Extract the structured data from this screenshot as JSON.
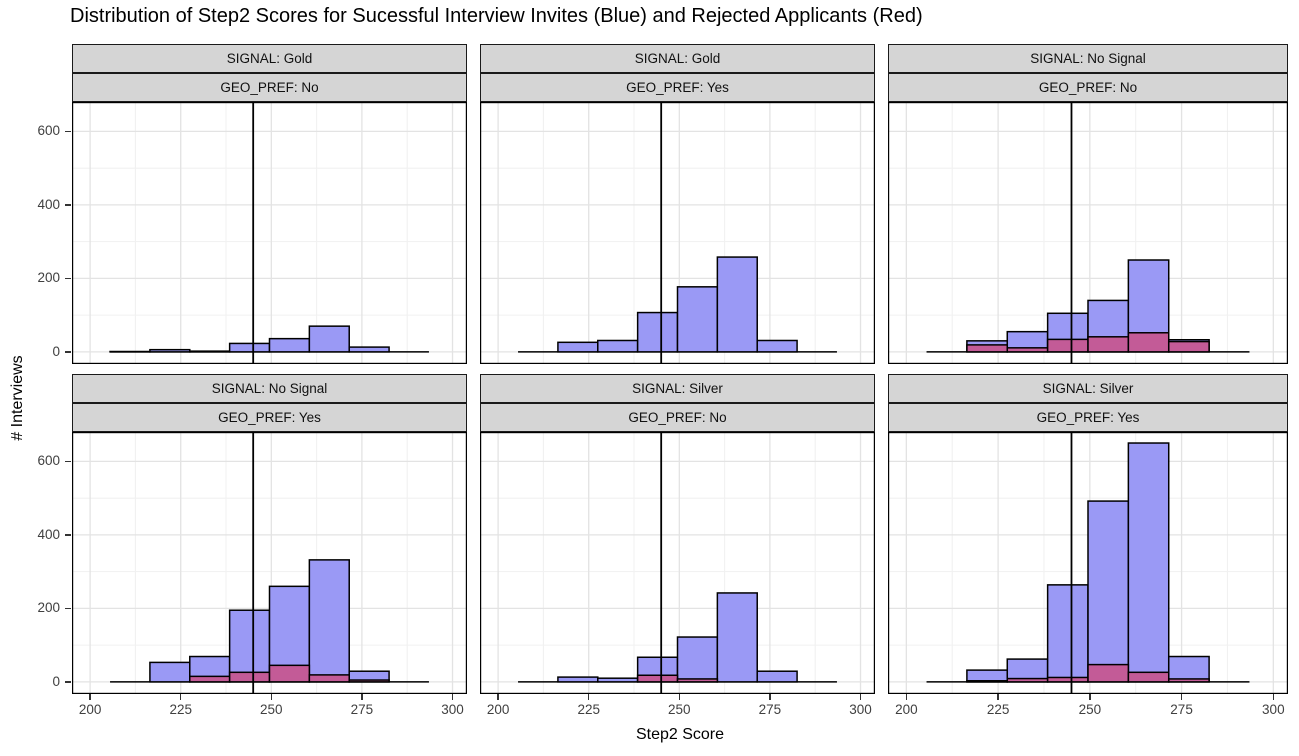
{
  "chart_data": {
    "type": "bar",
    "subtype": "faceted-histogram",
    "title": "Distribution of Step2 Scores for Sucessful Interview Invites (Blue) and Rejected Applicants (Red)",
    "xlabel": "Step2 Score",
    "ylabel": "# Interviews",
    "x_axis": {
      "ticks": [
        200,
        225,
        250,
        275,
        300
      ],
      "tick_labels": [
        "200",
        "225",
        "250",
        "275",
        "300"
      ],
      "minor_ticks": [
        212.5,
        237.5,
        262.5,
        287.5
      ],
      "domain": [
        195,
        304
      ]
    },
    "y_axis": {
      "ticks": [
        0,
        200,
        400,
        600
      ],
      "tick_labels": [
        "0",
        "200",
        "400",
        "600"
      ],
      "minor_ticks": [
        100,
        300,
        500
      ],
      "domain": [
        -33,
        680
      ]
    },
    "vline_x": 245,
    "bin_edges": [
      205.5,
      216.5,
      227.5,
      238.5,
      249.5,
      260.5,
      271.5,
      282.5,
      293.5
    ],
    "series": [
      {
        "name": "Interview Invites (Blue)",
        "color": "#9A99F5"
      },
      {
        "name": "Rejected Applicants (Red)",
        "color": "#C35B97"
      }
    ],
    "facets": [
      {
        "signal": "SIGNAL: Gold",
        "geo": "GEO_PREF: No",
        "blue": [
          1,
          6,
          2,
          23,
          36,
          70,
          13,
          0
        ],
        "red": [
          0,
          0,
          0,
          0,
          0,
          0,
          0,
          0
        ]
      },
      {
        "signal": "SIGNAL: Gold",
        "geo": "GEO_PREF: Yes",
        "blue": [
          0,
          26,
          31,
          107,
          177,
          258,
          31,
          0
        ],
        "red": [
          0,
          0,
          0,
          0,
          0,
          0,
          0,
          0
        ]
      },
      {
        "signal": "SIGNAL: No Signal",
        "geo": "GEO_PREF: No",
        "blue": [
          0,
          30,
          55,
          105,
          140,
          250,
          33,
          0
        ],
        "red": [
          0,
          19,
          11,
          34,
          41,
          52,
          28,
          0
        ]
      },
      {
        "signal": "SIGNAL: No Signal",
        "geo": "GEO_PREF: Yes",
        "blue": [
          0,
          53,
          69,
          195,
          260,
          332,
          29,
          0
        ],
        "red": [
          0,
          0,
          15,
          26,
          45,
          19,
          5,
          0
        ]
      },
      {
        "signal": "SIGNAL: Silver",
        "geo": "GEO_PREF: No",
        "blue": [
          0,
          13,
          10,
          67,
          122,
          242,
          29,
          0
        ],
        "red": [
          0,
          0,
          0,
          18,
          8,
          0,
          0,
          0
        ]
      },
      {
        "signal": "SIGNAL: Silver",
        "geo": "GEO_PREF: Yes",
        "blue": [
          0,
          32,
          62,
          264,
          492,
          650,
          69,
          0
        ],
        "red": [
          0,
          3,
          9,
          12,
          47,
          26,
          8,
          0
        ]
      }
    ],
    "colors": {
      "blue": "#9A99F5",
      "red": "#C35B97",
      "stroke": "#000000",
      "strip_bg": "#D5D5D5",
      "grid_major": "#E3E3E3",
      "grid_minor": "#F1F1F1",
      "tick_label": "#404040"
    }
  }
}
